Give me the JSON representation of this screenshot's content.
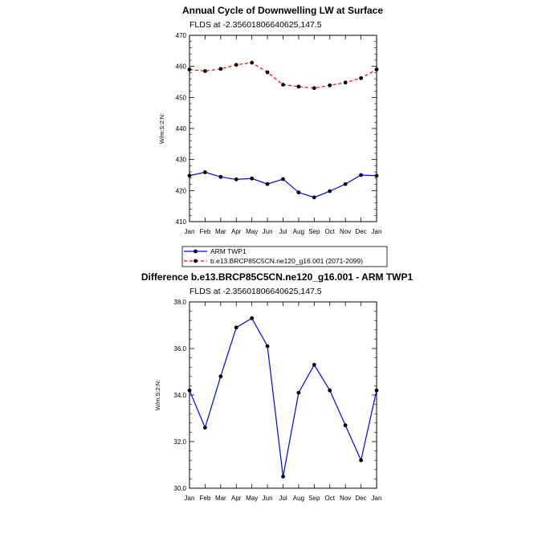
{
  "chart_data": [
    {
      "type": "line",
      "title": "Annual Cycle of Downwelling LW at Surface",
      "subtitle": "FLDS at -2.35601806640625,147.5",
      "ylabel": "W/m:S:2:N:",
      "categories": [
        "Jan",
        "Feb",
        "Mar",
        "Apr",
        "May",
        "Jun",
        "Jul",
        "Aug",
        "Sep",
        "Oct",
        "Nov",
        "Dec",
        "Jan"
      ],
      "ylim": [
        410,
        470
      ],
      "yticks": [
        "410",
        "420",
        "430",
        "440",
        "450",
        "460",
        "470"
      ],
      "series": [
        {
          "name": "ARM TWP1",
          "color": "#0000ff",
          "dash": "solid",
          "values": [
            424.8,
            425.9,
            424.4,
            423.6,
            423.9,
            422.1,
            423.7,
            419.4,
            417.8,
            419.8,
            422.1,
            425.0,
            424.8
          ]
        },
        {
          "name": "b.e13.BRCP85C5CN.ne120_g16.001 (2071-2099)",
          "color": "#ff0000",
          "dash": "dashed",
          "values": [
            459.0,
            458.5,
            459.2,
            460.5,
            461.2,
            458.1,
            454.1,
            453.5,
            453.0,
            453.9,
            454.8,
            456.2,
            459.0
          ]
        }
      ],
      "legend": "below"
    },
    {
      "type": "line",
      "title": "Difference b.e13.BRCP85C5CN.ne120_g16.001 - ARM TWP1",
      "subtitle": "FLDS at -2.35601806640625,147.5",
      "ylabel": "W/m:S:2:N:",
      "categories": [
        "Jan",
        "Feb",
        "Mar",
        "Apr",
        "May",
        "Jun",
        "Jul",
        "Aug",
        "Sep",
        "Oct",
        "Nov",
        "Dec",
        "Jan"
      ],
      "ylim": [
        30.0,
        38.0
      ],
      "yticks": [
        "30.0",
        "32.0",
        "34.0",
        "36.0",
        "38.0"
      ],
      "series": [
        {
          "color": "#0000ff",
          "dash": "solid",
          "values": [
            34.2,
            32.6,
            34.8,
            36.9,
            37.3,
            36.1,
            30.5,
            34.1,
            35.3,
            34.2,
            32.7,
            31.2,
            34.2
          ]
        }
      ]
    }
  ]
}
